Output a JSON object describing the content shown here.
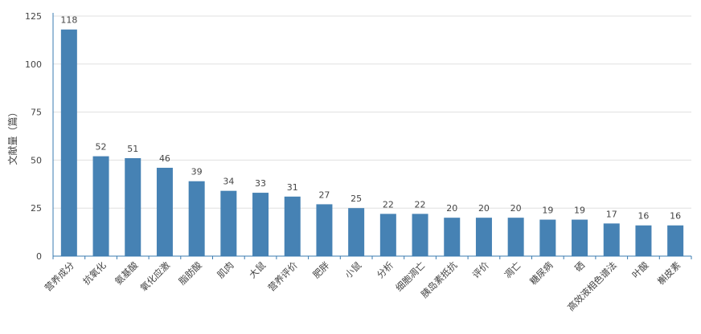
{
  "chart_data": {
    "type": "bar",
    "ylabel": "文献量（篇）",
    "ylim": [
      0,
      125
    ],
    "yticks": [
      0,
      25,
      50,
      75,
      100,
      125
    ],
    "grid": true,
    "color": "#4682b4",
    "categories": [
      "营养成分",
      "抗氧化",
      "氨基酸",
      "氧化应激",
      "脂肪酸",
      "肌肉",
      "大鼠",
      "营养评价",
      "肥胖",
      "小鼠",
      "分析",
      "细胞凋亡",
      "胰岛素抵抗",
      "评价",
      "凋亡",
      "糖尿病",
      "硒",
      "高效液相色谱法",
      "叶酸",
      "槲皮素"
    ],
    "values": [
      118,
      52,
      51,
      46,
      39,
      34,
      33,
      31,
      27,
      25,
      22,
      22,
      20,
      20,
      20,
      19,
      19,
      17,
      16,
      16
    ]
  }
}
